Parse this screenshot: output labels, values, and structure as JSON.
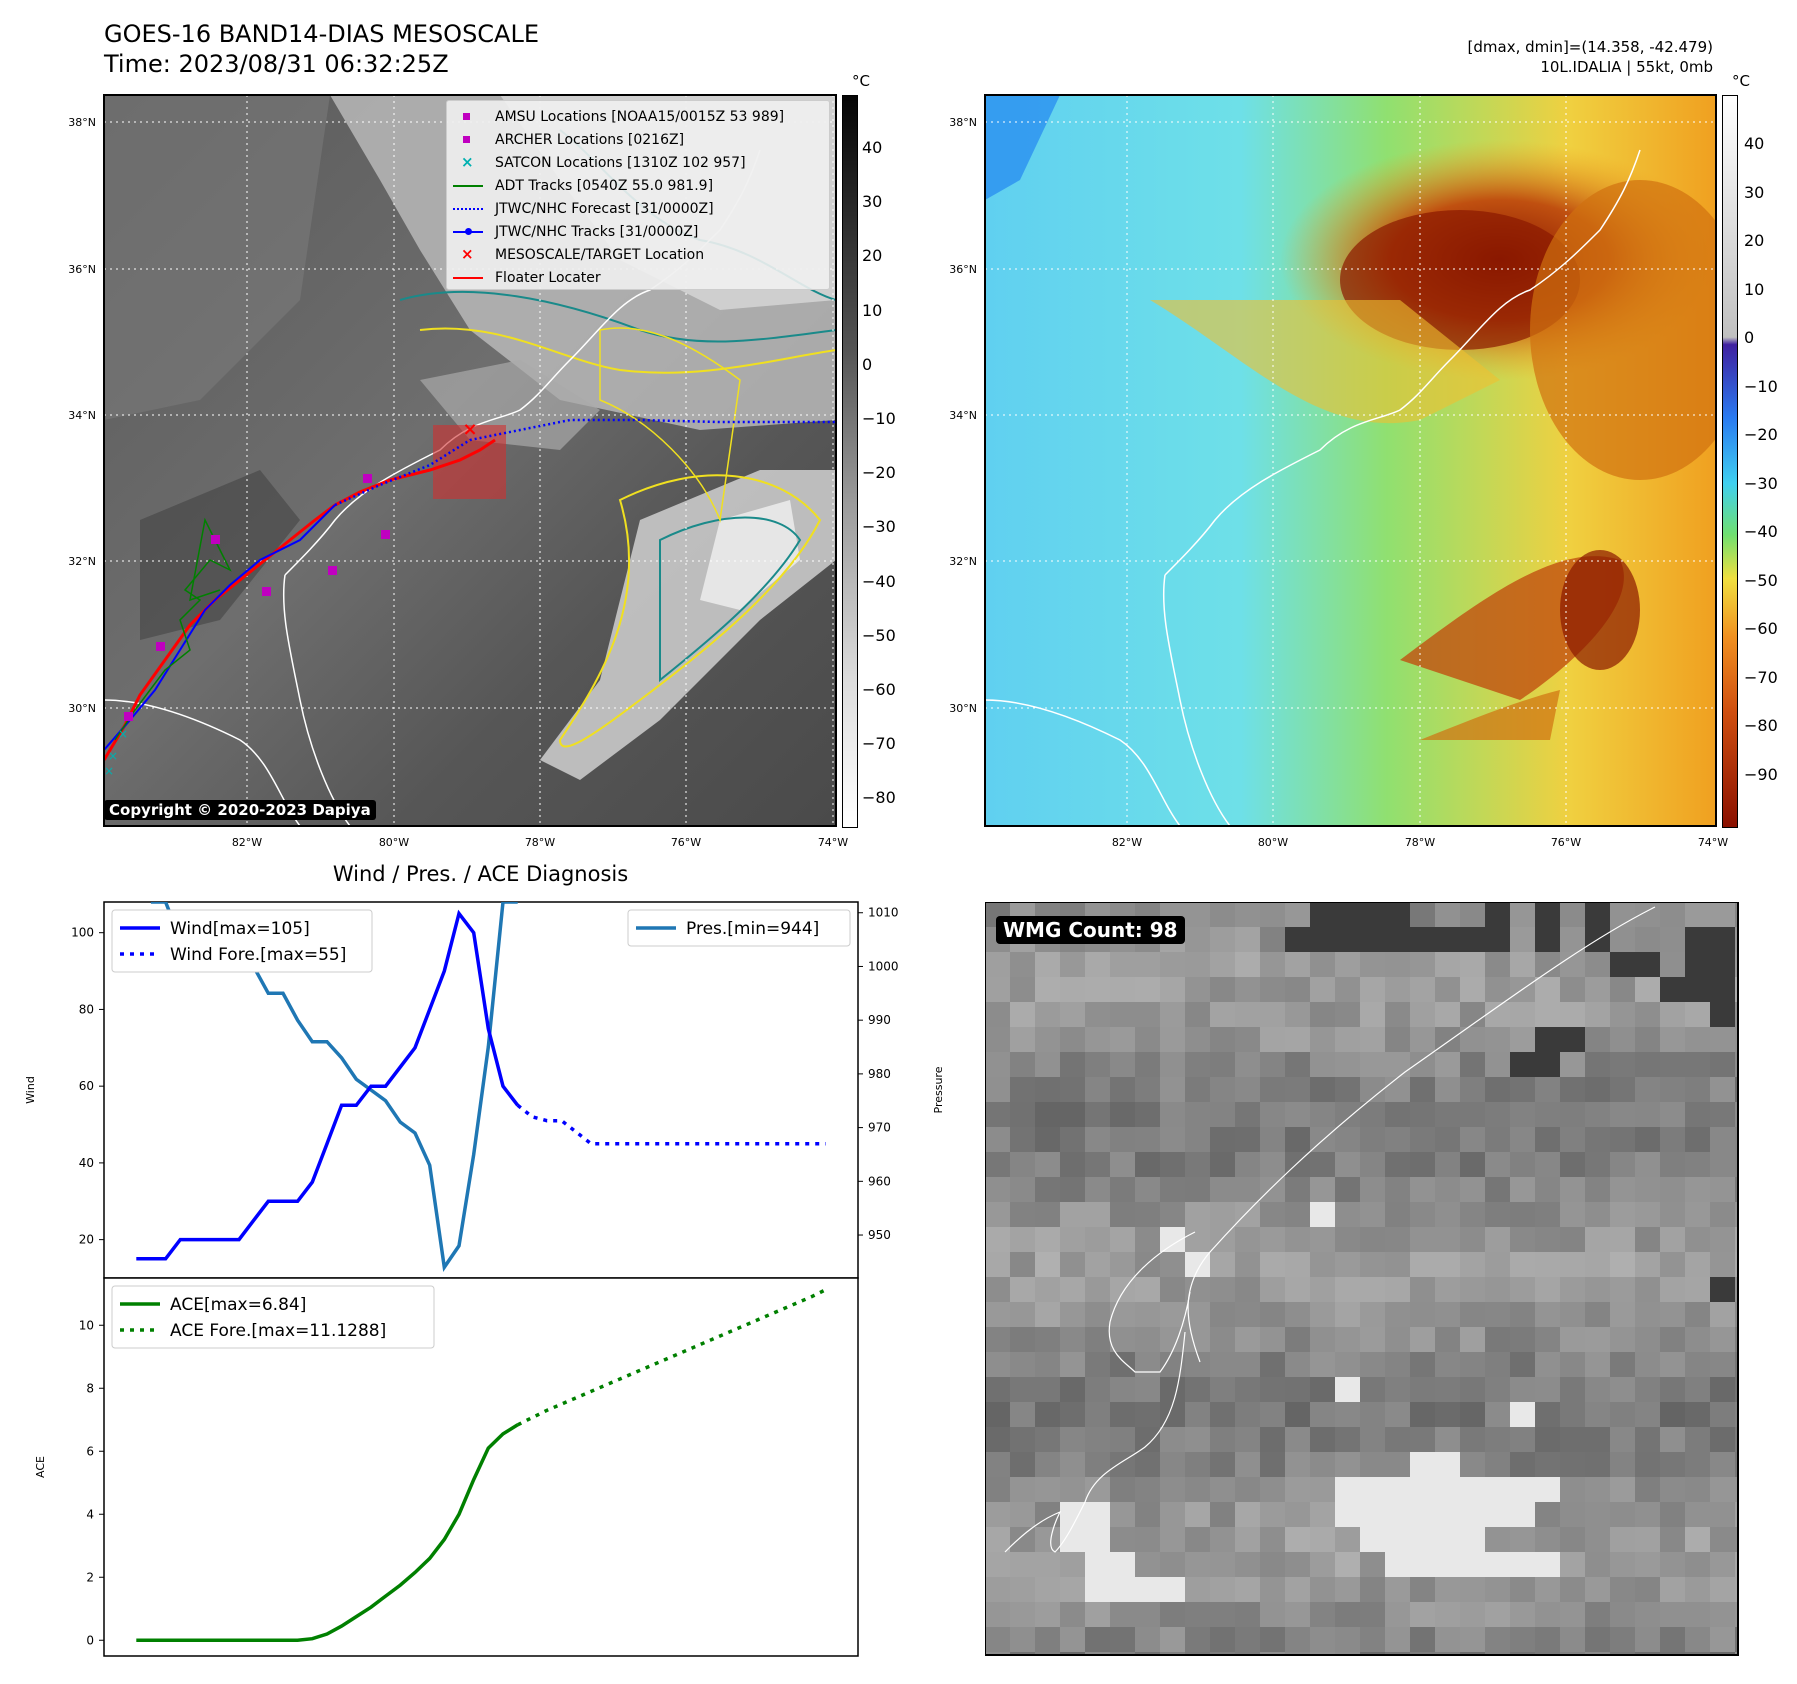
{
  "header": {
    "title_line1": "GOES-16 BAND14-DIAS MESOSCALE",
    "title_line2": "Time: 2023/08/31 06:32:25Z",
    "dmax_dmin": "[dmax, dmin]=(14.358, -42.479)",
    "storm_info": "10L.IDALIA | 55kt, 0mb"
  },
  "maps": {
    "lat_labels": [
      "38°N",
      "36°N",
      "34°N",
      "32°N",
      "30°N"
    ],
    "lon_labels": [
      "82°W",
      "80°W",
      "78°W",
      "76°W",
      "74°W"
    ],
    "copyright": "Copyright © 2020-2023 Dapiya",
    "colorbar_unit": "°C",
    "gray_colorbar_ticks": [
      "40",
      "30",
      "20",
      "10",
      "0",
      "−10",
      "−20",
      "−30",
      "−40",
      "−50",
      "−60",
      "−70",
      "−80"
    ],
    "color_colorbar_ticks": [
      "40",
      "30",
      "20",
      "10",
      "0",
      "−10",
      "−20",
      "−30",
      "−40",
      "−50",
      "−60",
      "−70",
      "−80",
      "−90"
    ],
    "legend": [
      {
        "label": "AMSU Locations [NOAA15/0015Z 53 989]",
        "color": "#c000c0"
      },
      {
        "label": "ARCHER Locations [0216Z]",
        "color": "#c000c0"
      },
      {
        "label": "SATCON Locations [1310Z 102 957]",
        "color": "#00b0b0"
      },
      {
        "label": "ADT Tracks [0540Z 55.0 981.9]",
        "color": "#008000"
      },
      {
        "label": "JTWC/NHC Forecast [31/0000Z]",
        "color": "#0000ff"
      },
      {
        "label": "JTWC/NHC Tracks [31/0000Z]",
        "color": "#0000ff"
      },
      {
        "label": "MESOSCALE/TARGET Location",
        "color": "#ff0000"
      },
      {
        "label": "Floater Locater",
        "color": "#ff0000"
      }
    ]
  },
  "wmg": {
    "label": "WMG Count: 98"
  },
  "chart_data": [
    {
      "type": "line",
      "title": "Wind / Pres. / ACE Diagnosis",
      "ylabel": "Wind",
      "ylabel_right": "Pressure",
      "ylim": [
        10,
        108
      ],
      "ylim_right": [
        942,
        1012
      ],
      "yticks": [
        20,
        40,
        60,
        80,
        100
      ],
      "yticks_right": [
        950,
        960,
        970,
        980,
        990,
        1000,
        1010
      ],
      "legend_left": [
        "Wind[max=105]",
        "Wind Fore.[max=55]"
      ],
      "legend_right": [
        "Pres.[min=944]"
      ],
      "x": [
        0,
        1,
        2,
        3,
        4,
        5,
        6,
        7,
        8,
        9,
        10,
        11,
        12,
        13,
        14,
        15,
        16,
        17,
        18,
        19,
        20,
        21,
        22,
        23,
        24,
        25,
        26,
        27,
        28,
        29,
        30,
        31,
        32,
        33,
        34,
        35,
        36,
        37,
        38,
        39,
        40,
        41,
        42,
        43,
        44,
        45,
        46,
        47
      ],
      "series": [
        {
          "name": "Wind[max=105]",
          "color": "#0000ff",
          "style": "solid",
          "x": [
            0,
            1,
            2,
            3,
            4,
            5,
            6,
            7,
            8,
            9,
            10,
            11,
            12,
            13,
            14,
            15,
            16,
            17,
            18,
            19,
            20,
            21,
            22,
            23,
            24,
            25,
            26
          ],
          "values": [
            15,
            15,
            15,
            20,
            20,
            20,
            20,
            20,
            25,
            30,
            30,
            30,
            35,
            45,
            55,
            55,
            60,
            60,
            65,
            70,
            80,
            90,
            105,
            100,
            75,
            60,
            55
          ]
        },
        {
          "name": "Wind Fore.[max=55]",
          "color": "#0000ff",
          "style": "dotted",
          "x": [
            26,
            27,
            28,
            29,
            30,
            31,
            32,
            33,
            34,
            35,
            36,
            37,
            38,
            39,
            40,
            41,
            42,
            43,
            44,
            45,
            46,
            47
          ],
          "values": [
            55,
            52,
            51,
            51,
            48,
            45,
            45,
            45,
            45,
            45,
            45,
            45,
            45,
            45,
            45,
            45,
            45,
            45,
            45,
            45,
            45,
            45
          ]
        },
        {
          "name": "Pres.[min=944]",
          "color": "#1f77b4",
          "style": "solid",
          "axis": "right",
          "x": [
            1,
            2,
            3,
            4,
            5,
            6,
            7,
            8,
            9,
            10,
            11,
            12,
            13,
            14,
            15,
            16,
            17,
            18,
            19,
            20,
            21,
            22,
            23,
            24,
            25,
            26
          ],
          "values": [
            1012,
            1012,
            1005,
            1004,
            1003,
            1003,
            1002,
            1000,
            995,
            995,
            990,
            986,
            986,
            983,
            979,
            977,
            975,
            971,
            969,
            963,
            944,
            948,
            965,
            985,
            1012,
            1012
          ]
        }
      ]
    },
    {
      "type": "line",
      "ylabel": "ACE",
      "ylim": [
        -0.5,
        11.5
      ],
      "yticks": [
        0,
        2,
        4,
        6,
        8,
        10
      ],
      "legend": [
        "ACE[max=6.84]",
        "ACE Fore.[max=11.1288]"
      ],
      "series": [
        {
          "name": "ACE[max=6.84]",
          "color": "#008000",
          "style": "solid",
          "x": [
            0,
            1,
            2,
            3,
            4,
            5,
            6,
            7,
            8,
            9,
            10,
            11,
            12,
            13,
            14,
            15,
            16,
            17,
            18,
            19,
            20,
            21,
            22,
            23,
            24,
            25,
            26
          ],
          "values": [
            0,
            0,
            0,
            0,
            0,
            0,
            0,
            0,
            0,
            0,
            0,
            0,
            0.05,
            0.2,
            0.45,
            0.75,
            1.05,
            1.4,
            1.75,
            2.15,
            2.6,
            3.2,
            4.0,
            5.1,
            6.1,
            6.55,
            6.84
          ]
        },
        {
          "name": "ACE Fore.[max=11.1288]",
          "color": "#008000",
          "style": "dotted",
          "x": [
            26,
            28,
            30,
            32,
            34,
            36,
            38,
            40,
            42,
            44,
            46,
            47
          ],
          "values": [
            6.84,
            7.3,
            7.7,
            8.1,
            8.5,
            8.9,
            9.3,
            9.7,
            10.1,
            10.5,
            10.9,
            11.13
          ]
        }
      ]
    }
  ]
}
